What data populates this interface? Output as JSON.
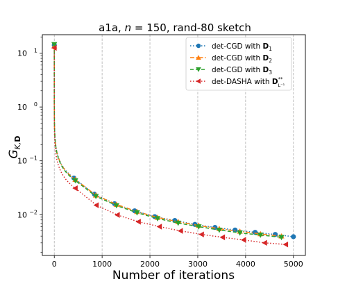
{
  "chart_data": {
    "type": "line",
    "title": "a1a, n = 150, rand-80 sketch",
    "title_parts": [
      "a1a, ",
      "n",
      " = 150, rand-80 sketch"
    ],
    "xlabel": "Number of iterations",
    "ylabel": "G_{K,D}",
    "ylabel_parts": [
      "G",
      "K,",
      "D"
    ],
    "x_ticks": [
      0,
      1000,
      2000,
      3000,
      4000,
      5000
    ],
    "x_tick_labels": [
      "0",
      "1000",
      "2000",
      "3000",
      "4000",
      "5000"
    ],
    "y_ticks": [
      0.01,
      0.1,
      1,
      10
    ],
    "y_tick_labels": [
      {
        "base": "10",
        "exp": "−2"
      },
      {
        "base": "10",
        "exp": "−1"
      },
      {
        "base": "10",
        "exp": "0"
      },
      {
        "base": "10",
        "exp": "1"
      }
    ],
    "x_range": [
      -250,
      5250
    ],
    "y_range": [
      0.00175,
      22
    ],
    "y_scale": "log",
    "grid": "vertical dashed at major x ticks",
    "legend_position": "top-right",
    "legend": [
      {
        "prefix": "det-CGD with ",
        "math": "D",
        "sub": "1",
        "sup": ""
      },
      {
        "prefix": "det-CGD with ",
        "math": "D",
        "sub": "2",
        "sup": ""
      },
      {
        "prefix": "det-CGD with ",
        "math": "D",
        "sub": "3",
        "sup": ""
      },
      {
        "prefix": "det-DASHA with ",
        "math": "D",
        "sub": "L⁻¹",
        "sup": "**"
      }
    ],
    "series": [
      {
        "color": "#1f77b4",
        "marker": "circle",
        "linestyle": "dotted",
        "x": [
          0,
          410,
          840,
          1260,
          1680,
          2100,
          2520,
          2940,
          3360,
          3780,
          4200,
          4620,
          5000
        ],
        "y": [
          14,
          0.048,
          0.024,
          0.016,
          0.0118,
          0.0092,
          0.0078,
          0.0066,
          0.0058,
          0.0052,
          0.0047,
          0.0043,
          0.0039
        ]
      },
      {
        "color": "#ff7f0e",
        "marker": "triangle-up",
        "linestyle": "dashdot",
        "x": [
          0,
          440,
          870,
          1300,
          1730,
          2160,
          2590,
          3020,
          3450,
          3880,
          4310,
          4750
        ],
        "y": [
          13.5,
          0.045,
          0.023,
          0.0155,
          0.0114,
          0.0089,
          0.0074,
          0.0063,
          0.0055,
          0.0049,
          0.0044,
          0.004
        ]
      },
      {
        "color": "#2ca02c",
        "marker": "triangle-down",
        "linestyle": "dashed",
        "x": [
          0,
          440,
          870,
          1300,
          1730,
          2160,
          2590,
          3020,
          3450,
          3880,
          4310,
          4750
        ],
        "y": [
          14.5,
          0.043,
          0.022,
          0.0148,
          0.0109,
          0.0085,
          0.007,
          0.006,
          0.0052,
          0.0046,
          0.0042,
          0.0038
        ]
      },
      {
        "color": "#d62728",
        "marker": "triangle-left",
        "linestyle": "dotted",
        "x": [
          0,
          440,
          880,
          1320,
          1760,
          2200,
          2640,
          3080,
          3520,
          3960,
          4400,
          4840
        ],
        "y": [
          12.5,
          0.031,
          0.015,
          0.0099,
          0.0074,
          0.006,
          0.005,
          0.0043,
          0.0038,
          0.0034,
          0.003,
          0.0028
        ]
      }
    ]
  }
}
